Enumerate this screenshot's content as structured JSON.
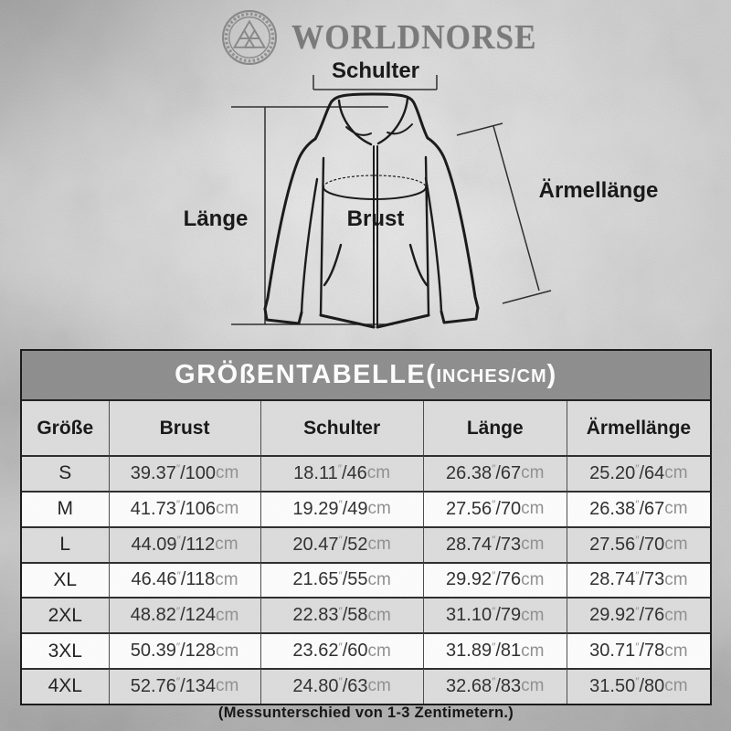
{
  "brand": {
    "name": "WORLDNORSE",
    "emblem_icon": "valknut-in-knotwork-ring"
  },
  "diagram": {
    "labels": {
      "schulter": "Schulter",
      "laenge": "Länge",
      "brust": "Brust",
      "aermellaenge": "Ärmellänge"
    }
  },
  "table": {
    "title": {
      "main_open": "GRÖßENTABELLE(",
      "unit": "INCHES/CM",
      "close": ")"
    },
    "columns": [
      "Größe",
      "Brust",
      "Schulter",
      "Länge",
      "Ärmellänge"
    ],
    "inch_mark": "″",
    "separator": "/",
    "unit_cm": "cm",
    "rows": [
      {
        "size": "S",
        "brust": {
          "in": "39.37",
          "cm": "100"
        },
        "schulter": {
          "in": "18.11",
          "cm": "46"
        },
        "laenge": {
          "in": "26.38",
          "cm": "67"
        },
        "aermel": {
          "in": "25.20",
          "cm": "64"
        }
      },
      {
        "size": "M",
        "brust": {
          "in": "41.73",
          "cm": "106"
        },
        "schulter": {
          "in": "19.29",
          "cm": "49"
        },
        "laenge": {
          "in": "27.56",
          "cm": "70"
        },
        "aermel": {
          "in": "26.38",
          "cm": "67"
        }
      },
      {
        "size": "L",
        "brust": {
          "in": "44.09",
          "cm": "112"
        },
        "schulter": {
          "in": "20.47",
          "cm": "52"
        },
        "laenge": {
          "in": "28.74",
          "cm": "73"
        },
        "aermel": {
          "in": "27.56",
          "cm": "70"
        }
      },
      {
        "size": "XL",
        "brust": {
          "in": "46.46",
          "cm": "118"
        },
        "schulter": {
          "in": "21.65",
          "cm": "55"
        },
        "laenge": {
          "in": "29.92",
          "cm": "76"
        },
        "aermel": {
          "in": "28.74",
          "cm": "73"
        }
      },
      {
        "size": "2XL",
        "brust": {
          "in": "48.82",
          "cm": "124"
        },
        "schulter": {
          "in": "22.83",
          "cm": "58"
        },
        "laenge": {
          "in": "31.10",
          "cm": "79"
        },
        "aermel": {
          "in": "29.92",
          "cm": "76"
        }
      },
      {
        "size": "3XL",
        "brust": {
          "in": "50.39",
          "cm": "128"
        },
        "schulter": {
          "in": "23.62",
          "cm": "60"
        },
        "laenge": {
          "in": "31.89",
          "cm": "81"
        },
        "aermel": {
          "in": "30.71",
          "cm": "78"
        }
      },
      {
        "size": "4XL",
        "brust": {
          "in": "52.76",
          "cm": "134"
        },
        "schulter": {
          "in": "24.80",
          "cm": "63"
        },
        "laenge": {
          "in": "32.68",
          "cm": "83"
        },
        "aermel": {
          "in": "31.50",
          "cm": "80"
        }
      }
    ],
    "footnote": "(Messunterschied von 1-3 Zentimetern.)"
  },
  "colors": {
    "title_bar_bg": "#8d8d8d",
    "title_text": "#ffffff",
    "row_alt_bg": "#dcdcdc",
    "row_bg": "#fdfdfd",
    "number_text": "#2d2d2d",
    "unit_text": "#8f8f8f",
    "ink": "#161616",
    "brand_gray": "#787878",
    "background": "#cbcbcb"
  }
}
